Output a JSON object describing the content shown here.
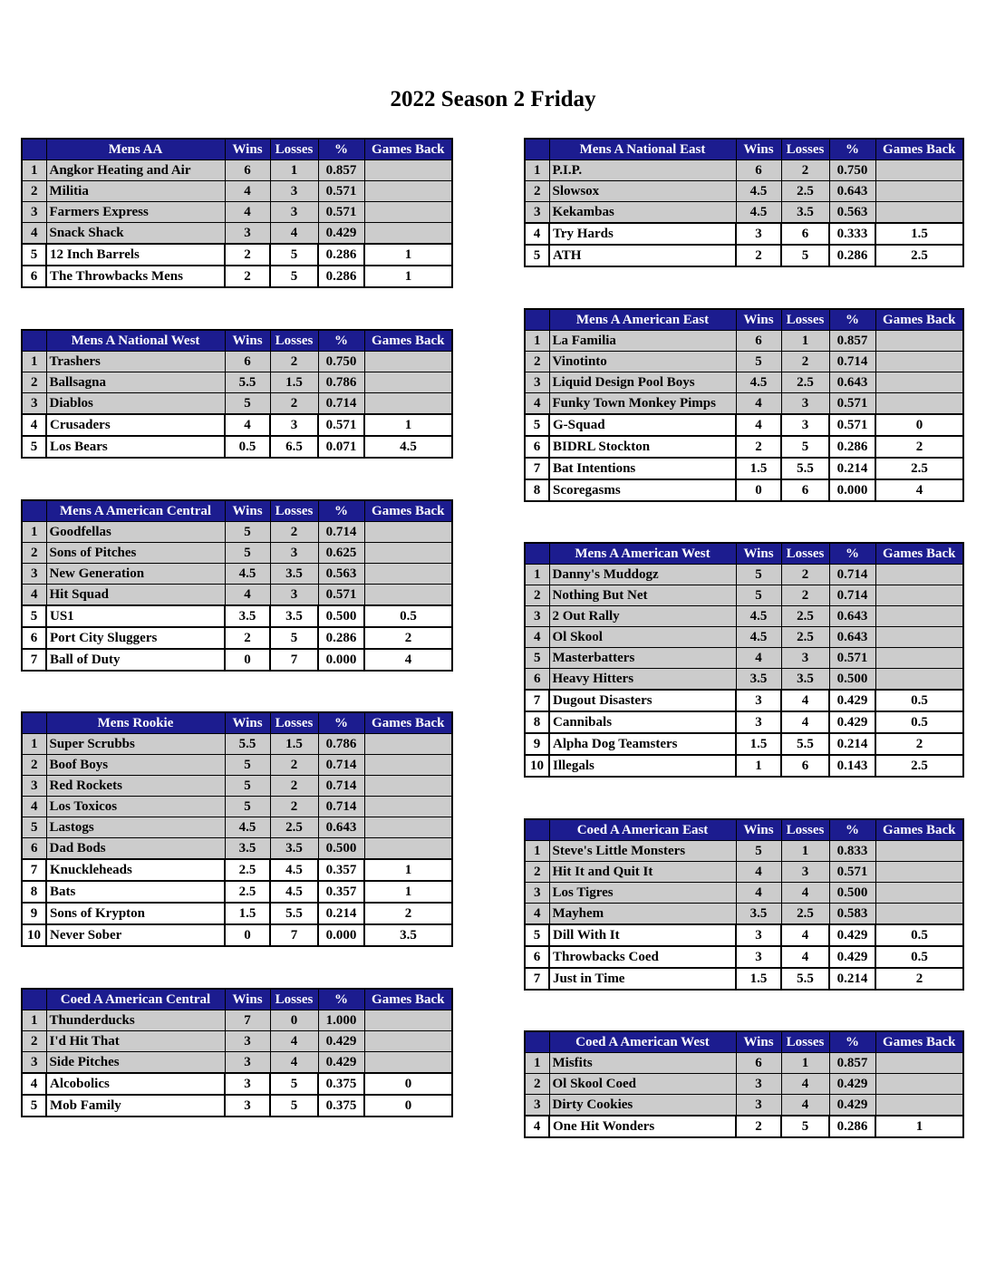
{
  "title": "2022 Season 2 Friday",
  "columns": {
    "wins": "Wins",
    "losses": "Losses",
    "pct": "%",
    "gb": "Games Back"
  },
  "colors": {
    "header": "#1c1c8f",
    "in_row": "#cccccc",
    "out_row": "#ffffff"
  },
  "divisions": [
    {
      "name": "Mens AA",
      "side": "left",
      "rows": [
        [
          "1",
          "Angkor Heating and Air",
          "6",
          "1",
          "0.857",
          ""
        ],
        [
          "2",
          "Militia",
          "4",
          "3",
          "0.571",
          ""
        ],
        [
          "3",
          "Farmers Express",
          "4",
          "3",
          "0.571",
          ""
        ],
        [
          "4",
          "Snack Shack",
          "3",
          "4",
          "0.429",
          ""
        ],
        [
          "5",
          "12 Inch Barrels",
          "2",
          "5",
          "0.286",
          "1"
        ],
        [
          "6",
          "The Throwbacks Mens",
          "2",
          "5",
          "0.286",
          "1"
        ]
      ]
    },
    {
      "name": "Mens A National West",
      "side": "left",
      "rows": [
        [
          "1",
          "Trashers",
          "6",
          "2",
          "0.750",
          ""
        ],
        [
          "2",
          "Ballsagna",
          "5.5",
          "1.5",
          "0.786",
          ""
        ],
        [
          "3",
          "Diablos",
          "5",
          "2",
          "0.714",
          ""
        ],
        [
          "4",
          "Crusaders",
          "4",
          "3",
          "0.571",
          "1"
        ],
        [
          "5",
          "Los Bears",
          "0.5",
          "6.5",
          "0.071",
          "4.5"
        ]
      ]
    },
    {
      "name": "Mens A American Central",
      "side": "left",
      "rows": [
        [
          "1",
          "Goodfellas",
          "5",
          "2",
          "0.714",
          ""
        ],
        [
          "2",
          "Sons of Pitches",
          "5",
          "3",
          "0.625",
          ""
        ],
        [
          "3",
          "New Generation",
          "4.5",
          "3.5",
          "0.563",
          ""
        ],
        [
          "4",
          "Hit Squad",
          "4",
          "3",
          "0.571",
          ""
        ],
        [
          "5",
          "US1",
          "3.5",
          "3.5",
          "0.500",
          "0.5"
        ],
        [
          "6",
          "Port City Sluggers",
          "2",
          "5",
          "0.286",
          "2"
        ],
        [
          "7",
          "Ball of Duty",
          "0",
          "7",
          "0.000",
          "4"
        ]
      ]
    },
    {
      "name": "Mens Rookie",
      "side": "left",
      "rows": [
        [
          "1",
          "Super Scrubbs",
          "5.5",
          "1.5",
          "0.786",
          ""
        ],
        [
          "2",
          "Boof Boys",
          "5",
          "2",
          "0.714",
          ""
        ],
        [
          "3",
          "Red Rockets",
          "5",
          "2",
          "0.714",
          ""
        ],
        [
          "4",
          "Los Toxicos",
          "5",
          "2",
          "0.714",
          ""
        ],
        [
          "5",
          "Lastogs",
          "4.5",
          "2.5",
          "0.643",
          ""
        ],
        [
          "6",
          "Dad Bods",
          "3.5",
          "3.5",
          "0.500",
          ""
        ],
        [
          "7",
          "Knuckleheads",
          "2.5",
          "4.5",
          "0.357",
          "1"
        ],
        [
          "8",
          "Bats",
          "2.5",
          "4.5",
          "0.357",
          "1"
        ],
        [
          "9",
          "Sons of Krypton",
          "1.5",
          "5.5",
          "0.214",
          "2"
        ],
        [
          "10",
          "Never Sober",
          "0",
          "7",
          "0.000",
          "3.5"
        ]
      ]
    },
    {
      "name": "Coed A American Central",
      "side": "left",
      "rows": [
        [
          "1",
          "Thunderducks",
          "7",
          "0",
          "1.000",
          ""
        ],
        [
          "2",
          "I'd Hit That",
          "3",
          "4",
          "0.429",
          ""
        ],
        [
          "3",
          "Side Pitches",
          "3",
          "4",
          "0.429",
          ""
        ],
        [
          "4",
          "Alcobolics",
          "3",
          "5",
          "0.375",
          "0"
        ],
        [
          "5",
          "Mob Family",
          "3",
          "5",
          "0.375",
          "0"
        ]
      ]
    },
    {
      "name": "Mens A National East",
      "side": "right",
      "rows": [
        [
          "1",
          "P.I.P.",
          "6",
          "2",
          "0.750",
          ""
        ],
        [
          "2",
          "Slowsox",
          "4.5",
          "2.5",
          "0.643",
          ""
        ],
        [
          "3",
          "Kekambas",
          "4.5",
          "3.5",
          "0.563",
          ""
        ],
        [
          "4",
          "Try Hards",
          "3",
          "6",
          "0.333",
          "1.5"
        ],
        [
          "5",
          "ATH",
          "2",
          "5",
          "0.286",
          "2.5"
        ]
      ]
    },
    {
      "name": "Mens A American East",
      "side": "right",
      "rows": [
        [
          "1",
          "La Familia",
          "6",
          "1",
          "0.857",
          ""
        ],
        [
          "2",
          "Vinotinto",
          "5",
          "2",
          "0.714",
          ""
        ],
        [
          "3",
          "Liquid Design Pool Boys",
          "4.5",
          "2.5",
          "0.643",
          ""
        ],
        [
          "4",
          "Funky Town Monkey Pimps",
          "4",
          "3",
          "0.571",
          ""
        ],
        [
          "5",
          "G-Squad",
          "4",
          "3",
          "0.571",
          "0"
        ],
        [
          "6",
          "BIDRL Stockton",
          "2",
          "5",
          "0.286",
          "2"
        ],
        [
          "7",
          "Bat Intentions",
          "1.5",
          "5.5",
          "0.214",
          "2.5"
        ],
        [
          "8",
          "Scoregasms",
          "0",
          "6",
          "0.000",
          "4"
        ]
      ]
    },
    {
      "name": "Mens A American West",
      "side": "right",
      "rows": [
        [
          "1",
          "Danny's Muddogz",
          "5",
          "2",
          "0.714",
          ""
        ],
        [
          "2",
          "Nothing But Net",
          "5",
          "2",
          "0.714",
          ""
        ],
        [
          "3",
          "2 Out Rally",
          "4.5",
          "2.5",
          "0.643",
          ""
        ],
        [
          "4",
          "Ol Skool",
          "4.5",
          "2.5",
          "0.643",
          ""
        ],
        [
          "5",
          "Masterbatters",
          "4",
          "3",
          "0.571",
          ""
        ],
        [
          "6",
          "Heavy Hitters",
          "3.5",
          "3.5",
          "0.500",
          ""
        ],
        [
          "7",
          "Dugout Disasters",
          "3",
          "4",
          "0.429",
          "0.5"
        ],
        [
          "8",
          "Cannibals",
          "3",
          "4",
          "0.429",
          "0.5"
        ],
        [
          "9",
          "Alpha Dog Teamsters",
          "1.5",
          "5.5",
          "0.214",
          "2"
        ],
        [
          "10",
          "Illegals",
          "1",
          "6",
          "0.143",
          "2.5"
        ]
      ]
    },
    {
      "name": "Coed A American East",
      "side": "right",
      "rows": [
        [
          "1",
          "Steve's Little Monsters",
          "5",
          "1",
          "0.833",
          ""
        ],
        [
          "2",
          "Hit It and Quit It",
          "4",
          "3",
          "0.571",
          ""
        ],
        [
          "3",
          "Los Tigres",
          "4",
          "4",
          "0.500",
          ""
        ],
        [
          "4",
          "Mayhem",
          "3.5",
          "2.5",
          "0.583",
          ""
        ],
        [
          "5",
          "Dill With It",
          "3",
          "4",
          "0.429",
          "0.5"
        ],
        [
          "6",
          "Throwbacks Coed",
          "3",
          "4",
          "0.429",
          "0.5"
        ],
        [
          "7",
          "Just in Time",
          "1.5",
          "5.5",
          "0.214",
          "2"
        ]
      ]
    },
    {
      "name": "Coed A American West",
      "side": "right",
      "rows": [
        [
          "1",
          "Misfits",
          "6",
          "1",
          "0.857",
          ""
        ],
        [
          "2",
          "Ol Skool Coed",
          "3",
          "4",
          "0.429",
          ""
        ],
        [
          "3",
          "Dirty Cookies",
          "3",
          "4",
          "0.429",
          ""
        ],
        [
          "4",
          "One Hit Wonders",
          "2",
          "5",
          "0.286",
          "1"
        ]
      ]
    }
  ]
}
